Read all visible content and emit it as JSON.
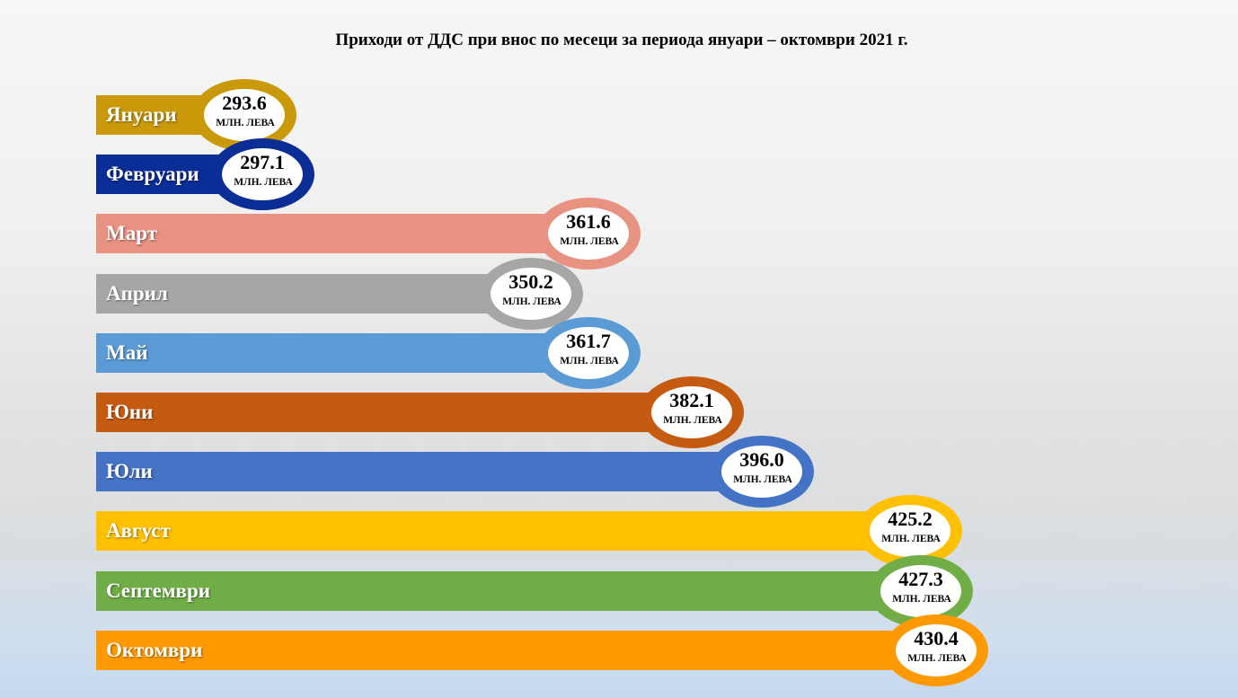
{
  "chart_data": {
    "type": "bar",
    "orientation": "horizontal",
    "title": "Приходи от ДДС при внос по месеци за периода януари – октомври 2021 г.",
    "unit": "млн. лева",
    "categories": [
      "Януари",
      "Февруари",
      "Март",
      "Април",
      "Май",
      "Юни",
      "Юли",
      "Август",
      "Септември",
      "Октомври"
    ],
    "values": [
      293.6,
      297.1,
      361.6,
      350.2,
      361.7,
      382.1,
      396.0,
      425.2,
      427.3,
      430.4
    ],
    "value_labels": [
      "293.6",
      "297.1",
      "361.6",
      "350.2",
      "361.7",
      "382.1",
      "396.0",
      "425.2",
      "427.3",
      "430.4"
    ],
    "colors": [
      "#c9990a",
      "#0a2d96",
      "#e89282",
      "#a6a6a6",
      "#5b9bd5",
      "#c55a11",
      "#4472c4",
      "#ffc000",
      "#70ad47",
      "#ff9900"
    ],
    "grid": false,
    "legend": "none"
  }
}
